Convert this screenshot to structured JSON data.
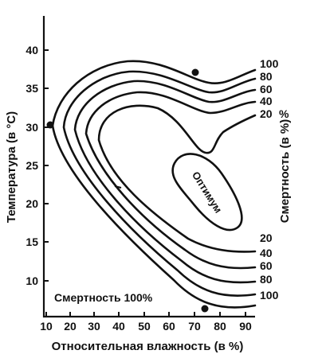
{
  "y_axis": {
    "title": "Температура (в °С)",
    "ticks": [
      "40",
      "35",
      "30",
      "25",
      "20",
      "15",
      "10"
    ]
  },
  "x_axis": {
    "title": "Относительная влажность (в %)",
    "ticks": [
      "10",
      "20",
      "30",
      "40",
      "50",
      "60",
      "70",
      "80",
      "90"
    ]
  },
  "right_axis": {
    "title": "Смертность (в %)",
    "upper_labels": [
      "100",
      "80",
      "60",
      "40",
      "20"
    ],
    "lower_labels": [
      "20",
      "40",
      "60",
      "80",
      "100"
    ]
  },
  "center_label": "Оптимум",
  "corner_note": "Смертность 100%",
  "points": [
    {
      "humidity": 71,
      "temperature": 37
    },
    {
      "humidity": 12,
      "temperature": 30
    },
    {
      "humidity": 75,
      "temperature": 6.5
    }
  ]
}
